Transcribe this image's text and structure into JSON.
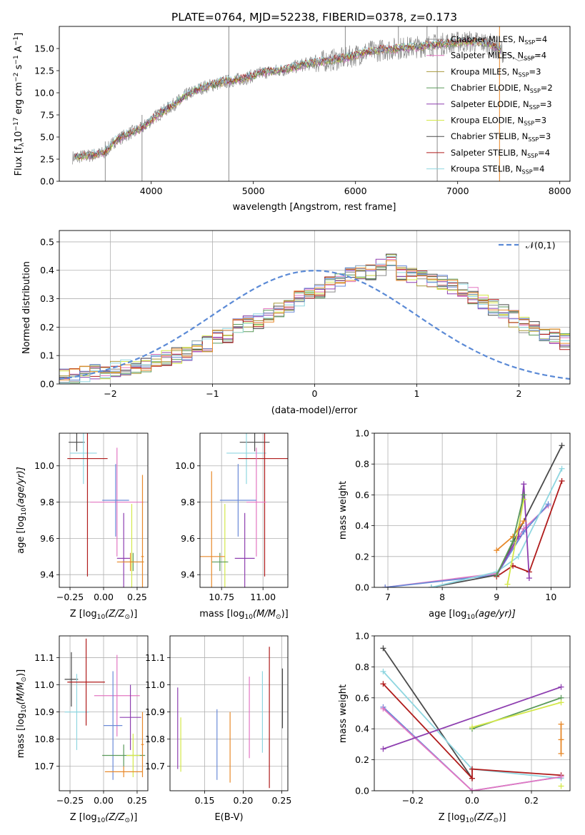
{
  "figure_title": "PLATE=0764, MJD=52238, FIBERID=0378, z=0.173",
  "legend_models": [
    {
      "name": "Chabrier MILES, N",
      "sub": "SSP",
      "tail": "=4",
      "color": "#8c8c8c"
    },
    {
      "name": "Salpeter MILES, N",
      "sub": "SSP",
      "tail": "=4",
      "color": "#e377c2"
    },
    {
      "name": "Kroupa MILES, N",
      "sub": "SSP",
      "tail": "=3",
      "color": "#a89a3c"
    },
    {
      "name": "Chabrier ELODIE, N",
      "sub": "SSP",
      "tail": "=2",
      "color": "#5a9a5a"
    },
    {
      "name": "Salpeter ELODIE, N",
      "sub": "SSP",
      "tail": "=3",
      "color": "#8e3fb0"
    },
    {
      "name": "Kroupa ELODIE, N",
      "sub": "SSP",
      "tail": "=3",
      "color": "#d4e84a"
    },
    {
      "name": "Chabrier STELIB, N",
      "sub": "SSP",
      "tail": "=3",
      "color": "#4a4a4a"
    },
    {
      "name": "Salpeter STELIB, N",
      "sub": "SSP",
      "tail": "=4",
      "color": "#b01c1c"
    },
    {
      "name": "Kroupa STELIB, N",
      "sub": "SSP",
      "tail": "=4",
      "color": "#8fd6e0"
    }
  ],
  "chart_data": [
    {
      "id": "spectrum",
      "type": "line",
      "xlabel": "wavelength [Angstrom, rest frame]",
      "ylabel_parts": [
        "Flux [f",
        "λ",
        "10",
        "−17",
        " erg cm",
        "−2",
        " s",
        "−1",
        " A",
        "−1",
        "]"
      ],
      "xlim": [
        3100,
        8100
      ],
      "ylim": [
        0,
        17.5
      ],
      "xticks": [
        4000,
        5000,
        6000,
        7000,
        8000
      ],
      "yticks": [
        0.0,
        2.5,
        5.0,
        7.5,
        10.0,
        12.5,
        15.0
      ],
      "continuum_points": {
        "x": [
          3230,
          3400,
          3540,
          3650,
          3800,
          3900,
          3950,
          4050,
          4200,
          4350,
          4500,
          4700,
          4900,
          5100,
          5300,
          5500,
          5700,
          5900,
          6100,
          6300,
          6500,
          6700,
          6900,
          7100,
          7300,
          7450
        ],
        "y": [
          2.7,
          2.9,
          3.2,
          4.6,
          5.5,
          5.9,
          6.4,
          7.4,
          8.5,
          9.8,
          10.6,
          11.2,
          11.6,
          12.3,
          12.6,
          13.2,
          13.6,
          13.9,
          14.6,
          14.9,
          15.1,
          15.3,
          15.6,
          15.8,
          15.6,
          14.6
        ]
      },
      "observed_range_x": [
        3230,
        7800
      ],
      "observed_tail": {
        "x": [
          7450,
          7600,
          7800
        ],
        "y": [
          14.6,
          13.6,
          14.2
        ]
      }
    },
    {
      "id": "residual-histogram",
      "type": "bar",
      "xlabel": "(data-model)/error",
      "ylabel": "Normed distribution",
      "xlim": [
        -2.5,
        2.5
      ],
      "ylim": [
        0,
        0.54
      ],
      "xticks": [
        -2,
        -1,
        0,
        1,
        2
      ],
      "yticks": [
        0.0,
        0.1,
        0.2,
        0.3,
        0.4,
        0.5
      ],
      "legend": "𝒩(0,1)",
      "bin_edges_step": 0.1,
      "bin_start": -2.5,
      "base_values": [
        0.025,
        0.03,
        0.035,
        0.04,
        0.045,
        0.05,
        0.055,
        0.06,
        0.07,
        0.085,
        0.09,
        0.1,
        0.105,
        0.125,
        0.14,
        0.16,
        0.17,
        0.2,
        0.21,
        0.22,
        0.24,
        0.255,
        0.27,
        0.3,
        0.32,
        0.33,
        0.35,
        0.37,
        0.385,
        0.39,
        0.395,
        0.41,
        0.44,
        0.39,
        0.38,
        0.375,
        0.37,
        0.36,
        0.345,
        0.33,
        0.31,
        0.29,
        0.27,
        0.25,
        0.23,
        0.21,
        0.2,
        0.18,
        0.17,
        0.15
      ]
    },
    {
      "id": "age-vs-Z",
      "type": "scatter",
      "xlabel_parts": [
        "Z [log",
        "10",
        "(Z/Z",
        "⊙",
        ")]"
      ],
      "ylabel_parts": [
        "age  [log",
        "10",
        "(age/yr)]"
      ],
      "xlim": [
        -0.33,
        0.33
      ],
      "ylim": [
        9.33,
        10.18
      ],
      "xticks": [
        -0.25,
        0.0,
        0.25
      ],
      "yticks": [
        9.4,
        9.6,
        9.8,
        10.0
      ],
      "points": [
        {
          "x": -0.2,
          "y": 10.13,
          "xerr": 0.06,
          "yerr": 0.05,
          "color": "#4a4a4a"
        },
        {
          "x": -0.15,
          "y": 10.07,
          "xerr": 0.1,
          "yerr": 0.17,
          "color": "#8fd6e0"
        },
        {
          "x": -0.12,
          "y": 10.04,
          "xerr": 0.15,
          "yerr": 0.65,
          "color": "#b01c1c"
        },
        {
          "x": 0.1,
          "y": 9.8,
          "xerr": 0.2,
          "yerr": 0.3,
          "color": "#e377c2"
        },
        {
          "x": 0.09,
          "y": 9.81,
          "xerr": 0.1,
          "yerr": 0.2,
          "color": "#6a8ad8"
        },
        {
          "x": 0.15,
          "y": 9.49,
          "xerr": 0.05,
          "yerr": 0.25,
          "color": "#8e3fb0"
        },
        {
          "x": 0.21,
          "y": 9.47,
          "xerr": 0.02,
          "yerr": 0.32,
          "color": "#d4e84a"
        },
        {
          "x": 0.22,
          "y": 9.47,
          "xerr": 0.08,
          "yerr": 0.05,
          "color": "#5a9a5a"
        },
        {
          "x": 0.2,
          "y": 9.47,
          "xerr": 0.1,
          "yerr": 0.05,
          "color": "#e8892a"
        },
        {
          "x": 0.29,
          "y": 9.5,
          "xerr": 0.01,
          "yerr": 0.45,
          "color": "#e8892a"
        }
      ]
    },
    {
      "id": "age-vs-mass",
      "type": "scatter",
      "xlabel_parts": [
        "mass [log",
        "10",
        "(M/M",
        "⊙",
        ")]"
      ],
      "xlim": [
        10.62,
        11.15
      ],
      "ylim": [
        9.33,
        10.18
      ],
      "xticks": [
        10.75,
        11.0
      ],
      "yticks": [
        9.4,
        9.6,
        9.8,
        10.0
      ],
      "points": [
        {
          "x": 10.95,
          "y": 10.13,
          "xerr": 0.09,
          "yerr": 0.05,
          "color": "#4a4a4a"
        },
        {
          "x": 10.9,
          "y": 10.07,
          "xerr": 0.12,
          "yerr": 0.17,
          "color": "#8fd6e0"
        },
        {
          "x": 11.01,
          "y": 10.04,
          "xerr": 0.16,
          "yerr": 0.65,
          "color": "#b01c1c"
        },
        {
          "x": 10.96,
          "y": 9.8,
          "xerr": 0.06,
          "yerr": 0.3,
          "color": "#e377c2"
        },
        {
          "x": 10.85,
          "y": 9.81,
          "xerr": 0.11,
          "yerr": 0.2,
          "color": "#6a8ad8"
        },
        {
          "x": 10.89,
          "y": 9.49,
          "xerr": 0.06,
          "yerr": 0.25,
          "color": "#8e3fb0"
        },
        {
          "x": 10.77,
          "y": 9.47,
          "xerr": 0.01,
          "yerr": 0.32,
          "color": "#d4e84a"
        },
        {
          "x": 10.74,
          "y": 9.47,
          "xerr": 0.05,
          "yerr": 0.05,
          "color": "#5a9a5a"
        },
        {
          "x": 10.69,
          "y": 9.5,
          "xerr": 0.08,
          "yerr": 0.47,
          "color": "#e8892a"
        }
      ]
    },
    {
      "id": "mass-weight-vs-age",
      "type": "line",
      "xlabel_parts": [
        "age  [log",
        "10",
        "(age/yr)]"
      ],
      "ylabel": "mass weight",
      "xlim": [
        6.75,
        10.35
      ],
      "ylim": [
        0,
        1.0
      ],
      "xticks": [
        7,
        8,
        9,
        10
      ],
      "yticks": [
        0.0,
        0.2,
        0.4,
        0.6,
        0.8,
        1.0
      ],
      "series": [
        {
          "color": "#e377c2",
          "x": [
            6.95,
            9.0,
            9.5,
            9.95
          ],
          "y": [
            0.0,
            0.09,
            0.38,
            0.53
          ]
        },
        {
          "color": "#6a8ad8",
          "x": [
            6.95,
            9.0,
            9.5,
            9.95
          ],
          "y": [
            0.0,
            0.08,
            0.36,
            0.54
          ]
        },
        {
          "color": "#4a4a4a",
          "x": [
            7.8,
            9.0,
            10.2
          ],
          "y": [
            0.0,
            0.08,
            0.92
          ]
        },
        {
          "color": "#8fd6e0",
          "x": [
            7.8,
            9.0,
            9.4,
            10.2
          ],
          "y": [
            0.0,
            0.1,
            0.2,
            0.77
          ]
        },
        {
          "color": "#b01c1c",
          "x": [
            9.0,
            9.3,
            9.6,
            10.2
          ],
          "y": [
            0.07,
            0.14,
            0.1,
            0.69
          ]
        },
        {
          "color": "#8e3fb0",
          "x": [
            9.0,
            9.4,
            9.5,
            9.6
          ],
          "y": [
            0.08,
            0.33,
            0.67,
            0.06
          ]
        },
        {
          "color": "#d4e84a",
          "x": [
            9.2,
            9.5
          ],
          "y": [
            0.02,
            0.57
          ]
        },
        {
          "color": "#e8892a",
          "x": [
            9.0,
            9.3,
            9.5
          ],
          "y": [
            0.24,
            0.33,
            0.43
          ]
        },
        {
          "color": "#5a9a5a",
          "x": [
            9.0,
            9.3,
            9.5
          ],
          "y": [
            0.08,
            0.3,
            0.6
          ]
        }
      ]
    },
    {
      "id": "mass-vs-Z",
      "type": "scatter",
      "xlabel_parts": [
        "Z [log",
        "10",
        "(Z/Z",
        "⊙",
        ")]"
      ],
      "ylabel_parts": [
        "mass [log",
        "10",
        "(M/M",
        "⊙",
        ")]"
      ],
      "xlim": [
        -0.33,
        0.33
      ],
      "ylim": [
        10.61,
        11.18
      ],
      "xticks": [
        -0.25,
        0.0,
        0.25
      ],
      "yticks": [
        10.7,
        10.8,
        10.9,
        11.0,
        11.1
      ],
      "points": [
        {
          "x": -0.24,
          "y": 11.02,
          "xerr": 0.05,
          "yerr": 0.1,
          "color": "#4a4a4a"
        },
        {
          "x": -0.2,
          "y": 10.9,
          "xerr": 0.09,
          "yerr": 0.14,
          "color": "#8fd6e0"
        },
        {
          "x": -0.13,
          "y": 11.01,
          "xerr": 0.14,
          "yerr": 0.16,
          "color": "#b01c1c"
        },
        {
          "x": 0.1,
          "y": 10.96,
          "xerr": 0.17,
          "yerr": 0.15,
          "color": "#e377c2"
        },
        {
          "x": 0.07,
          "y": 10.85,
          "xerr": 0.07,
          "yerr": 0.2,
          "color": "#6a8ad8"
        },
        {
          "x": 0.2,
          "y": 10.88,
          "xerr": 0.08,
          "yerr": 0.12,
          "color": "#8e3fb0"
        },
        {
          "x": 0.15,
          "y": 10.74,
          "xerr": 0.16,
          "yerr": 0.04,
          "color": "#5a9a5a"
        },
        {
          "x": 0.22,
          "y": 10.74,
          "xerr": 0.05,
          "yerr": 0.08,
          "color": "#d4e84a"
        },
        {
          "x": 0.15,
          "y": 10.68,
          "xerr": 0.14,
          "yerr": 0.02,
          "color": "#e8892a"
        },
        {
          "x": 0.29,
          "y": 10.78,
          "xerr": 0.01,
          "yerr": 0.12,
          "color": "#e8892a"
        }
      ]
    },
    {
      "id": "mass-vs-EBV",
      "type": "scatter",
      "xlabel": "E(B-V)",
      "xlim": [
        0.105,
        0.258
      ],
      "ylim": [
        10.61,
        11.18
      ],
      "xticks": [
        0.15,
        0.2,
        0.25
      ],
      "yticks": [
        10.7,
        10.8,
        10.9,
        11.0,
        11.1
      ],
      "points": [
        {
          "x": 0.115,
          "y": 10.84,
          "xerr": 0,
          "yerr": 0.15,
          "color": "#8e3fb0"
        },
        {
          "x": 0.119,
          "y": 10.78,
          "xerr": 0,
          "yerr": 0.1,
          "color": "#d4e84a"
        },
        {
          "x": 0.166,
          "y": 10.78,
          "xerr": 0,
          "yerr": 0.13,
          "color": "#6a8ad8"
        },
        {
          "x": 0.183,
          "y": 10.77,
          "xerr": 0,
          "yerr": 0.13,
          "color": "#e8892a"
        },
        {
          "x": 0.208,
          "y": 10.88,
          "xerr": 0,
          "yerr": 0.15,
          "color": "#e377c2"
        },
        {
          "x": 0.225,
          "y": 10.9,
          "xerr": 0,
          "yerr": 0.15,
          "color": "#8fd6e0"
        },
        {
          "x": 0.234,
          "y": 10.88,
          "xerr": 0,
          "yerr": 0.26,
          "color": "#b01c1c"
        },
        {
          "x": 0.251,
          "y": 10.95,
          "xerr": 0,
          "yerr": 0.11,
          "color": "#4a4a4a"
        }
      ]
    },
    {
      "id": "mass-weight-vs-Z",
      "type": "line",
      "xlabel_parts": [
        "Z [log",
        "10",
        "(Z/Z",
        "⊙",
        ")]"
      ],
      "ylabel": "mass weight",
      "xlim": [
        -0.33,
        0.33
      ],
      "ylim": [
        0,
        1.0
      ],
      "xticks": [
        -0.2,
        0.0,
        0.2
      ],
      "yticks": [
        0.0,
        0.2,
        0.4,
        0.6,
        0.8,
        1.0
      ],
      "series": [
        {
          "color": "#4a4a4a",
          "x": [
            -0.3,
            0.0
          ],
          "y": [
            0.92,
            0.08
          ]
        },
        {
          "color": "#8fd6e0",
          "x": [
            -0.3,
            0.0,
            0.3
          ],
          "y": [
            0.77,
            0.14,
            0.08
          ]
        },
        {
          "color": "#b01c1c",
          "x": [
            -0.3,
            0.0,
            0.0,
            0.3
          ],
          "y": [
            0.69,
            0.08,
            0.14,
            0.1
          ]
        },
        {
          "color": "#6a8ad8",
          "x": [
            -0.3,
            0.0,
            0.3
          ],
          "y": [
            0.54,
            0.0,
            0.09
          ]
        },
        {
          "color": "#e377c2",
          "x": [
            -0.3,
            0.0,
            0.3
          ],
          "y": [
            0.53,
            0.0,
            0.09
          ]
        },
        {
          "color": "#8e3fb0",
          "x": [
            -0.3,
            0.3
          ],
          "y": [
            0.27,
            0.67
          ]
        },
        {
          "color": "#5a9a5a",
          "x": [
            0.0,
            0.3
          ],
          "y": [
            0.4,
            0.6
          ]
        },
        {
          "color": "#d4e84a",
          "x": [
            0.0,
            0.3
          ],
          "y": [
            0.41,
            0.57
          ]
        },
        {
          "color": "#e8892a",
          "x": [
            0.3,
            0.3,
            0.3
          ],
          "y": [
            0.43,
            0.33,
            0.24
          ]
        },
        {
          "color": "#d4e84a",
          "x": [
            0.3
          ],
          "y": [
            0.03
          ]
        }
      ]
    }
  ]
}
